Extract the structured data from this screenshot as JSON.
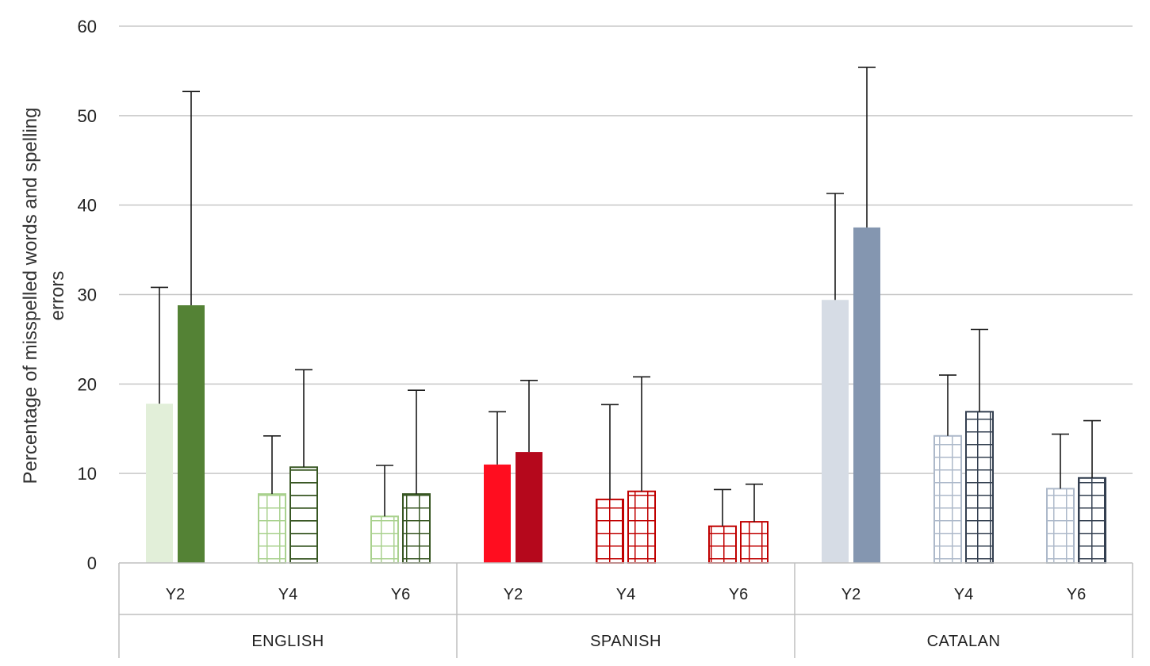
{
  "chart_data": {
    "type": "bar",
    "ylabel_lines": [
      "Percentage of misspelled words  and spelling",
      "errors"
    ],
    "ylim": [
      0,
      60
    ],
    "yticks": [
      0,
      10,
      20,
      30,
      40,
      50,
      60
    ],
    "ytick_labels": [
      "0",
      "10",
      "20",
      "30",
      "40",
      "50",
      "60"
    ],
    "grid": true,
    "groups": [
      {
        "name": "ENGLISH",
        "categories": [
          {
            "label": "Y2",
            "bars": [
              {
                "value": 17.8,
                "error_top": 30.8,
                "fill": "#e2efd9",
                "stroke": "#e2efd9",
                "pattern": "solid"
              },
              {
                "value": 28.8,
                "error_top": 52.7,
                "fill": "#548235",
                "stroke": "#548235",
                "pattern": "solid"
              }
            ]
          },
          {
            "label": "Y4",
            "bars": [
              {
                "value": 7.7,
                "error_top": 14.2,
                "fill": "#ffffff",
                "stroke": "#a9d18e",
                "pattern": "grid"
              },
              {
                "value": 10.7,
                "error_top": 21.6,
                "fill": "#ffffff",
                "stroke": "#385723",
                "pattern": "hlines"
              }
            ]
          },
          {
            "label": "Y6",
            "bars": [
              {
                "value": 5.2,
                "error_top": 10.9,
                "fill": "#ffffff",
                "stroke": "#a9d18e",
                "pattern": "grid"
              },
              {
                "value": 7.7,
                "error_top": 19.3,
                "fill": "#ffffff",
                "stroke": "#385723",
                "pattern": "grid"
              }
            ]
          }
        ]
      },
      {
        "name": "SPANISH",
        "categories": [
          {
            "label": "Y2",
            "bars": [
              {
                "value": 11.0,
                "error_top": 16.9,
                "fill": "#ff0d1f",
                "stroke": "#ff0d1f",
                "pattern": "solid"
              },
              {
                "value": 12.4,
                "error_top": 20.4,
                "fill": "#b5081c",
                "stroke": "#b5081c",
                "pattern": "solid"
              }
            ]
          },
          {
            "label": "Y4",
            "bars": [
              {
                "value": 7.1,
                "error_top": 17.7,
                "fill": "#ffffff",
                "stroke": "#c00000",
                "pattern": "grid"
              },
              {
                "value": 8.0,
                "error_top": 20.8,
                "fill": "#ffffff",
                "stroke": "#c00000",
                "pattern": "grid"
              }
            ]
          },
          {
            "label": "Y6",
            "bars": [
              {
                "value": 4.1,
                "error_top": 8.2,
                "fill": "#ffffff",
                "stroke": "#c00000",
                "pattern": "grid"
              },
              {
                "value": 4.6,
                "error_top": 8.8,
                "fill": "#ffffff",
                "stroke": "#c00000",
                "pattern": "grid"
              }
            ]
          }
        ]
      },
      {
        "name": "CATALAN",
        "categories": [
          {
            "label": "Y2",
            "bars": [
              {
                "value": 29.4,
                "error_top": 41.3,
                "fill": "#d6dce5",
                "stroke": "#d6dce5",
                "pattern": "solid"
              },
              {
                "value": 37.5,
                "error_top": 55.4,
                "fill": "#8496b0",
                "stroke": "#8496b0",
                "pattern": "solid"
              }
            ]
          },
          {
            "label": "Y4",
            "bars": [
              {
                "value": 14.2,
                "error_top": 21.0,
                "fill": "#ffffff",
                "stroke": "#adb9ca",
                "pattern": "grid"
              },
              {
                "value": 16.9,
                "error_top": 26.1,
                "fill": "#ffffff",
                "stroke": "#333f50",
                "pattern": "grid"
              }
            ]
          },
          {
            "label": "Y6",
            "bars": [
              {
                "value": 8.3,
                "error_top": 14.4,
                "fill": "#ffffff",
                "stroke": "#adb9ca",
                "pattern": "grid"
              },
              {
                "value": 9.5,
                "error_top": 15.9,
                "fill": "#ffffff",
                "stroke": "#333f50",
                "pattern": "grid"
              }
            ]
          }
        ]
      }
    ],
    "colors": {
      "gridline": "#c8c8c8",
      "axis": "#bfbfbf",
      "error_bar": "#1a1a1a"
    }
  }
}
